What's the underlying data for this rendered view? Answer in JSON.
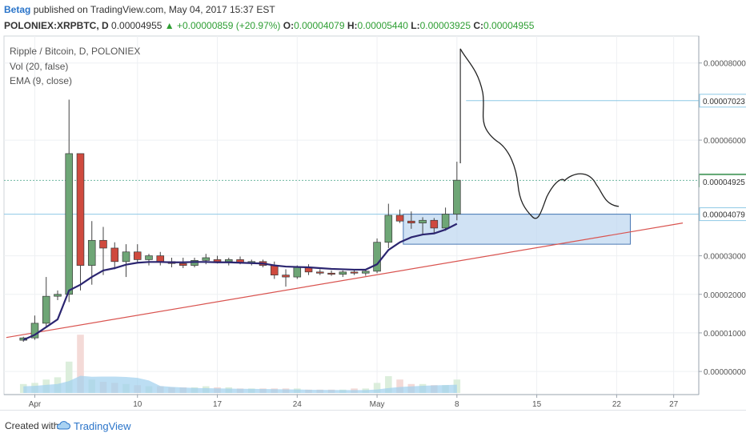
{
  "header": {
    "author": "Betag",
    "published_text": "published on TradingView.com, May 04, 2017 15:37 EST",
    "symbol": "POLONIEX:XRPBTC, D",
    "last": "0.00004955",
    "change": "▲ +0.00000859 (+20.97%)",
    "o_label": "O:",
    "o_value": "0.00004079",
    "h_label": "H:",
    "h_value": "0.00005440",
    "l_label": "L:",
    "l_value": "0.00003925",
    "c_label": "C:",
    "c_value": "0.00004955"
  },
  "legend": {
    "line1": "Ripple / Bitcoin, D, POLONIEX",
    "line2": "Vol (20, false)",
    "line3": "EMA (9, close)"
  },
  "footer": {
    "created_with": "Created with",
    "brand": "TradingView"
  },
  "colors": {
    "up": "#6ea676",
    "down": "#cf4a3e",
    "ema": "#2b2570",
    "trendline": "#d9534f",
    "hline": "#8ec8e6",
    "box_fill": "#bcd6f0",
    "box_stroke": "#4a78b5",
    "vol_area": "#9fd0ee"
  },
  "chart_data": {
    "type": "candlestick",
    "ylim": [
      -6e-06,
      8.7e-05
    ],
    "y_ticks": [
      {
        "v": 8e-05,
        "label": "0.00008000"
      },
      {
        "v": 6e-05,
        "label": "0.00006000"
      },
      {
        "v": 3e-05,
        "label": "0.00003000"
      },
      {
        "v": 2e-05,
        "label": "0.00002000"
      },
      {
        "v": 1e-05,
        "label": "0.00001000"
      },
      {
        "v": 0.0,
        "label": "0.00000000"
      }
    ],
    "price_tags": [
      {
        "v": 7.023e-05,
        "label": "0.00007023",
        "kind": "line"
      },
      {
        "v": 4.955e-05,
        "label": "0.00004955",
        "kind": "last"
      },
      {
        "v": 4.925e-05,
        "label": "0.00004925",
        "kind": "plain"
      },
      {
        "v": 4.079e-05,
        "label": "0.00004079",
        "kind": "line"
      }
    ],
    "x_ticks": [
      {
        "i": 1,
        "label": "Apr"
      },
      {
        "i": 10,
        "label": "10"
      },
      {
        "i": 17,
        "label": "17"
      },
      {
        "i": 24,
        "label": "24"
      },
      {
        "i": 31,
        "label": "May"
      },
      {
        "i": 38,
        "label": "8"
      },
      {
        "i": 45,
        "label": "15"
      },
      {
        "i": 52,
        "label": "22"
      },
      {
        "i": 57,
        "label": "27"
      }
    ],
    "x_range": [
      -1.7,
      59.2
    ],
    "candles": [
      {
        "i": 0,
        "o": 8.1e-06,
        "h": 9e-06,
        "l": 7.7e-06,
        "c": 8.7e-06
      },
      {
        "i": 1,
        "o": 8.7e-06,
        "h": 1.45e-05,
        "l": 8.2e-06,
        "c": 1.25e-05
      },
      {
        "i": 2,
        "o": 1.25e-05,
        "h": 2.45e-05,
        "l": 1.17e-05,
        "c": 1.95e-05
      },
      {
        "i": 3,
        "o": 1.95e-05,
        "h": 2.1e-05,
        "l": 1.85e-05,
        "c": 2e-05
      },
      {
        "i": 4,
        "o": 2e-05,
        "h": 7.05e-05,
        "l": 1.8e-05,
        "c": 5.65e-05
      },
      {
        "i": 5,
        "o": 5.65e-05,
        "h": 5.65e-05,
        "l": 2.1e-05,
        "c": 2.75e-05
      },
      {
        "i": 6,
        "o": 2.75e-05,
        "h": 3.9e-05,
        "l": 2.25e-05,
        "c": 3.4e-05
      },
      {
        "i": 7,
        "o": 3.4e-05,
        "h": 3.75e-05,
        "l": 2.5e-05,
        "c": 3.2e-05
      },
      {
        "i": 8,
        "o": 3.2e-05,
        "h": 3.35e-05,
        "l": 2.65e-05,
        "c": 2.85e-05
      },
      {
        "i": 9,
        "o": 2.85e-05,
        "h": 3.3e-05,
        "l": 2.45e-05,
        "c": 3.1e-05
      },
      {
        "i": 10,
        "o": 3.1e-05,
        "h": 3.3e-05,
        "l": 2.8e-05,
        "c": 2.9e-05
      },
      {
        "i": 11,
        "o": 2.9e-05,
        "h": 3.05e-05,
        "l": 2.75e-05,
        "c": 3e-05
      },
      {
        "i": 12,
        "o": 3e-05,
        "h": 3.1e-05,
        "l": 2.75e-05,
        "c": 2.85e-05
      },
      {
        "i": 13,
        "o": 2.85e-05,
        "h": 2.95e-05,
        "l": 2.7e-05,
        "c": 2.8e-05
      },
      {
        "i": 14,
        "o": 2.8e-05,
        "h": 2.95e-05,
        "l": 2.68e-05,
        "c": 2.75e-05
      },
      {
        "i": 15,
        "o": 2.75e-05,
        "h": 2.95e-05,
        "l": 2.7e-05,
        "c": 2.88e-05
      },
      {
        "i": 16,
        "o": 2.88e-05,
        "h": 3.05e-05,
        "l": 2.78e-05,
        "c": 2.95e-05
      },
      {
        "i": 17,
        "o": 2.9e-05,
        "h": 3e-05,
        "l": 2.8e-05,
        "c": 2.85e-05
      },
      {
        "i": 18,
        "o": 2.85e-05,
        "h": 2.95e-05,
        "l": 2.75e-05,
        "c": 2.9e-05
      },
      {
        "i": 19,
        "o": 2.9e-05,
        "h": 2.98e-05,
        "l": 2.78e-05,
        "c": 2.82e-05
      },
      {
        "i": 20,
        "o": 2.82e-05,
        "h": 2.9e-05,
        "l": 2.75e-05,
        "c": 2.85e-05
      },
      {
        "i": 21,
        "o": 2.85e-05,
        "h": 2.9e-05,
        "l": 2.7e-05,
        "c": 2.75e-05
      },
      {
        "i": 22,
        "o": 2.75e-05,
        "h": 2.85e-05,
        "l": 2.4e-05,
        "c": 2.5e-05
      },
      {
        "i": 23,
        "o": 2.5e-05,
        "h": 2.65e-05,
        "l": 2.2e-05,
        "c": 2.45e-05
      },
      {
        "i": 24,
        "o": 2.45e-05,
        "h": 2.75e-05,
        "l": 2.4e-05,
        "c": 2.7e-05
      },
      {
        "i": 25,
        "o": 2.7e-05,
        "h": 2.78e-05,
        "l": 2.5e-05,
        "c": 2.58e-05
      },
      {
        "i": 26,
        "o": 2.58e-05,
        "h": 2.65e-05,
        "l": 2.5e-05,
        "c": 2.55e-05
      },
      {
        "i": 27,
        "o": 2.55e-05,
        "h": 2.62e-05,
        "l": 2.48e-05,
        "c": 2.52e-05
      },
      {
        "i": 28,
        "o": 2.52e-05,
        "h": 2.62e-05,
        "l": 2.45e-05,
        "c": 2.58e-05
      },
      {
        "i": 29,
        "o": 2.58e-05,
        "h": 2.65e-05,
        "l": 2.5e-05,
        "c": 2.55e-05
      },
      {
        "i": 30,
        "o": 2.55e-05,
        "h": 2.65e-05,
        "l": 2.48e-05,
        "c": 2.6e-05
      },
      {
        "i": 31,
        "o": 2.6e-05,
        "h": 3.45e-05,
        "l": 2.55e-05,
        "c": 3.35e-05
      },
      {
        "i": 32,
        "o": 3.35e-05,
        "h": 4.35e-05,
        "l": 3.2e-05,
        "c": 4.05e-05
      },
      {
        "i": 33,
        "o": 4.05e-05,
        "h": 4.2e-05,
        "l": 3.85e-05,
        "c": 3.9e-05
      },
      {
        "i": 34,
        "o": 3.9e-05,
        "h": 4.15e-05,
        "l": 3.7e-05,
        "c": 3.85e-05
      },
      {
        "i": 35,
        "o": 3.85e-05,
        "h": 4e-05,
        "l": 3.55e-05,
        "c": 3.92e-05
      },
      {
        "i": 36,
        "o": 3.92e-05,
        "h": 3.98e-05,
        "l": 3.6e-05,
        "c": 3.72e-05
      },
      {
        "i": 37,
        "o": 3.72e-05,
        "h": 4.25e-05,
        "l": 3.65e-05,
        "c": 4.08e-05
      },
      {
        "i": 38,
        "o": 4.08e-05,
        "h": 5.44e-05,
        "l": 3.92e-05,
        "c": 4.96e-05
      }
    ],
    "ema": [
      8.2e-06,
      9.5e-06,
      1.15e-05,
      1.35e-05,
      2.1e-05,
      2.25e-05,
      2.45e-05,
      2.62e-05,
      2.68e-05,
      2.77e-05,
      2.82e-05,
      2.84e-05,
      2.84e-05,
      2.83e-05,
      2.83e-05,
      2.84e-05,
      2.84e-05,
      2.83e-05,
      2.83e-05,
      2.82e-05,
      2.81e-05,
      2.8e-05,
      2.75e-05,
      2.72e-05,
      2.71e-05,
      2.7e-05,
      2.68e-05,
      2.66e-05,
      2.65e-05,
      2.64e-05,
      2.64e-05,
      2.78e-05,
      3.15e-05,
      3.35e-05,
      3.48e-05,
      3.55e-05,
      3.58e-05,
      3.68e-05,
      3.83e-05
    ],
    "volume": [
      0.08,
      0.09,
      0.12,
      0.14,
      0.28,
      0.52,
      0.12,
      0.1,
      0.09,
      0.08,
      0.07,
      0.06,
      0.06,
      0.05,
      0.05,
      0.05,
      0.06,
      0.05,
      0.05,
      0.04,
      0.04,
      0.04,
      0.04,
      0.04,
      0.04,
      0.03,
      0.03,
      0.03,
      0.03,
      0.04,
      0.04,
      0.09,
      0.15,
      0.12,
      0.08,
      0.08,
      0.07,
      0.07,
      0.12
    ],
    "trendline": {
      "x1": -1.5,
      "y1": 8.8e-06,
      "x2": 57.8,
      "y2": 3.85e-05
    },
    "hlines": [
      {
        "v": 7.023e-05,
        "from": 38.8,
        "to": 59.2
      },
      {
        "v": 4.955e-05,
        "from": -1.7,
        "to": 59.2,
        "dotted": true
      },
      {
        "v": 4.079e-05,
        "from": -1.7,
        "to": 59.2
      }
    ],
    "box": {
      "x1": 33.3,
      "x2": 53.2,
      "y1": 4.079e-05,
      "y2": 3.3e-05
    }
  }
}
